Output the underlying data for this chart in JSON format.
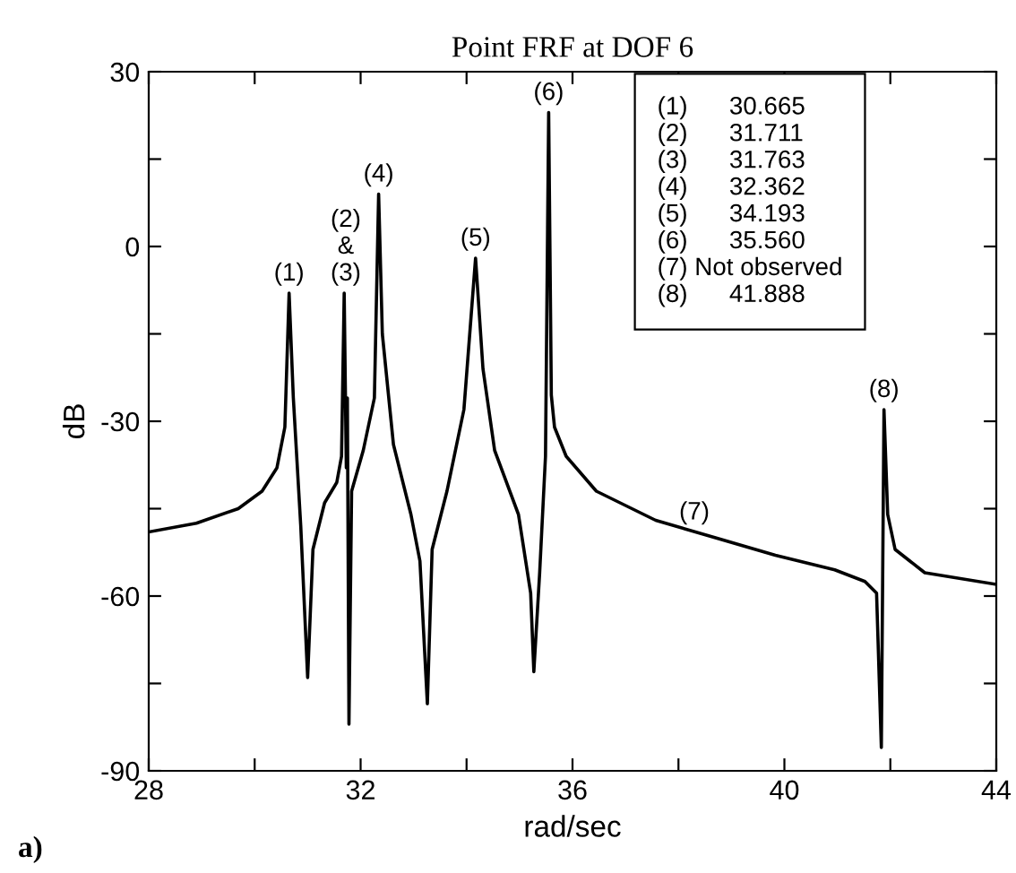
{
  "chart_data": {
    "type": "line",
    "title": "Point FRF at DOF 6",
    "xlabel": "rad/sec",
    "ylabel": "dB",
    "series": [
      {
        "color": "#000000",
        "x": [
          28,
          28.9,
          29.69,
          30.14,
          30.42,
          30.57,
          30.65,
          30.73,
          30.87,
          31.0,
          31.1,
          31.32,
          31.55,
          31.64,
          31.69,
          31.73,
          31.75,
          31.78,
          31.83,
          32.05,
          32.26,
          32.34,
          32.41,
          32.62,
          32.95,
          33.12,
          33.26,
          33.35,
          33.63,
          33.95,
          34.17,
          34.31,
          34.53,
          34.98,
          35.21,
          35.27,
          35.38,
          35.49,
          35.55,
          35.6,
          35.66,
          35.88,
          36.45,
          37.57,
          38.7,
          39.83,
          40.95,
          41.52,
          41.74,
          41.83,
          41.88,
          41.95,
          42.09,
          42.65,
          44
        ],
        "values": [
          -49,
          -47.5,
          -45,
          -42,
          -38,
          -31,
          -8,
          -26,
          -48,
          -74,
          -52,
          -44,
          -40.5,
          -36,
          -8,
          -38,
          -26,
          -82,
          -42,
          -35,
          -26,
          9,
          -15,
          -34,
          -46,
          -54,
          -78.5,
          -52,
          -42,
          -28,
          -2,
          -21,
          -35,
          -46,
          -59.5,
          -73,
          -56,
          -36,
          23,
          -25.5,
          -31,
          -36,
          -42,
          -47,
          -50,
          -53,
          -55.5,
          -57.5,
          -59.5,
          -86,
          -28,
          -46,
          -52,
          -56,
          -58
        ]
      }
    ],
    "xlim": [
      28,
      44
    ],
    "ylim": [
      -90,
      30
    ],
    "xticks": [
      28,
      {
        "value": 30,
        "label": null
      },
      32,
      {
        "value": 34,
        "label": null
      },
      36,
      {
        "value": 38,
        "label": null
      },
      40,
      {
        "value": 42,
        "label": null
      },
      44
    ],
    "yticks": [
      -90,
      {
        "value": -75,
        "label": null
      },
      -60,
      {
        "value": -45,
        "label": null
      },
      -30,
      {
        "value": -15,
        "label": null
      },
      0,
      {
        "value": 15,
        "label": null
      },
      30
    ],
    "grid": false,
    "legend": false,
    "marker": "none",
    "line_style": "solid",
    "annotations": [
      {
        "text": "(1)",
        "x": 30.65,
        "y": -8
      },
      {
        "text": "(2)\n&\n(3)",
        "x": 31.72,
        "y": -8
      },
      {
        "text": "(4)",
        "x": 32.34,
        "y": 9
      },
      {
        "text": "(5)",
        "x": 34.17,
        "y": -2
      },
      {
        "text": "(6)",
        "x": 35.55,
        "y": 23
      },
      {
        "text": "(7)",
        "x": 38.3,
        "y": -49
      },
      {
        "text": "(8)",
        "x": 41.88,
        "y": -28
      },
      "(1)      30.665\n(2)      31.711\n(3)      31.763\n(4)      32.362\n(5)      34.193\n(6)      35.560\n(7) Not observed\n(8)      41.888",
      "a)"
    ]
  }
}
